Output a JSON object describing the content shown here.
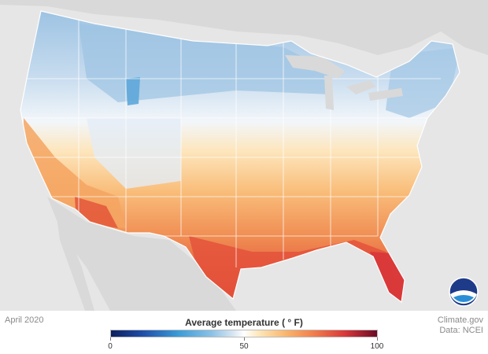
{
  "map": {
    "title": "Average temperature (°F)",
    "period": "April 2020",
    "credit_line1": "Climate.gov",
    "credit_line2": "Data: NCEI",
    "logo_text": "NOAA"
  },
  "legend": {
    "title": "Average temperature ( ° F)",
    "min_label": "0",
    "mid_label": "50",
    "max_label": "100",
    "range": [
      0,
      100
    ],
    "colors": [
      "#0d1f5c",
      "#3a9ad6",
      "#ffffff",
      "#f9b46b",
      "#d8383a",
      "#6b0b25"
    ]
  },
  "colors": {
    "background": "#e6e6e6",
    "land_other": "#d6d6d6",
    "cold": "#9cc4e4",
    "cool": "#cfe0ef",
    "neutral": "#f8f8f8",
    "mild": "#fde3b2",
    "warm": "#f7b46c",
    "hot": "#ef7c4a",
    "hottest": "#d9413a"
  }
}
